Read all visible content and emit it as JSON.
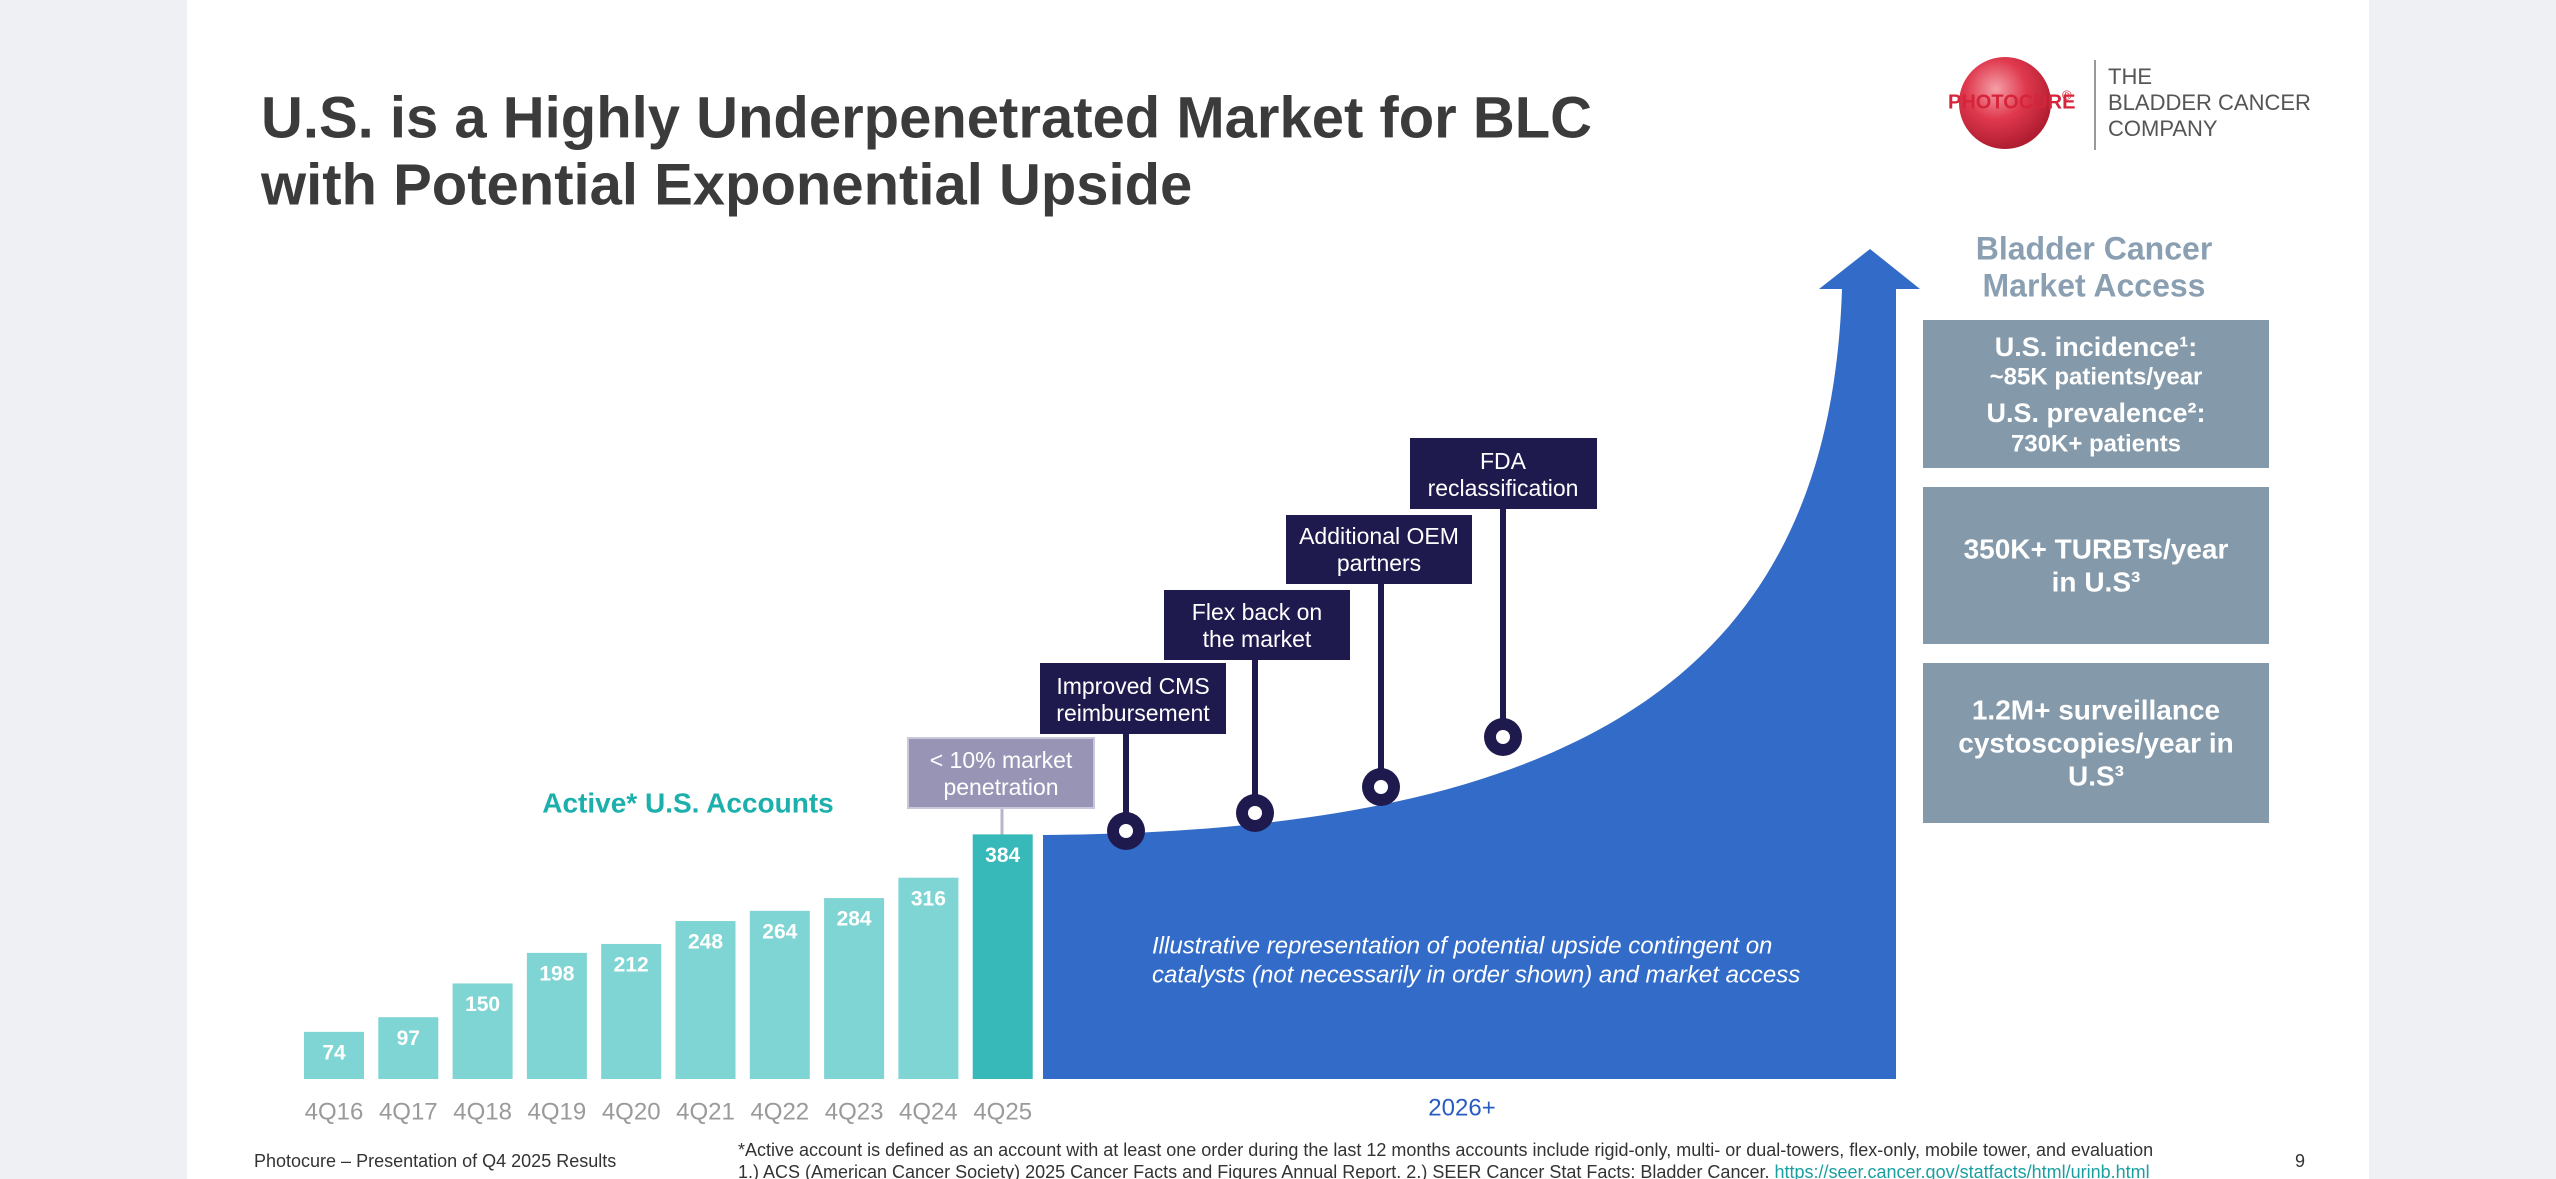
{
  "slide": {
    "title": [
      "U.S. is a Highly Underpenetrated Market for BLC",
      "with Potential Exponential Upside"
    ],
    "logo": {
      "brand": "PHOTOCURE",
      "mark": "®",
      "tagline": [
        "THE",
        "BLADDER CANCER",
        "COMPANY"
      ]
    },
    "penetration_note": [
      "< 10% market",
      "penetration"
    ],
    "milestones": [
      [
        "Improved CMS",
        "reimbursement"
      ],
      [
        "Flex back on",
        "the market"
      ],
      [
        "Additional OEM",
        "partners"
      ],
      [
        "FDA",
        "reclassification"
      ]
    ],
    "upside_note": [
      "Illustrative representation of potential upside contingent on",
      "catalysts (not necessarily in order shown) and market access"
    ],
    "upside_period": "2026+",
    "market_access": {
      "heading": [
        "Bladder Cancer",
        "Market Access"
      ],
      "boxes": [
        [
          "U.S. incidence¹:",
          "~85K patients/year",
          "U.S. prevalence²:",
          "730K+ patients"
        ],
        [
          "350K+ TURBTs/year",
          "in U.S³"
        ],
        [
          "1.2M+ surveillance",
          "cystoscopies/year in",
          "U.S³"
        ]
      ]
    },
    "footer": {
      "source": "Photocure – Presentation of Q4 2025 Results",
      "notes": [
        "*Active account is defined as an account with at least one order during the last 12 months accounts include rigid-only, multi- or dual-towers, flex-only, mobile tower, and evaluation",
        "1.) ACS (American Cancer Society) 2025 Cancer Facts and Figures Annual Report. 2.) SEER Cancer Stat Facts: Bladder Cancer. "
      ],
      "link": "https://seer.cancer.gov/statfacts/html/urinb.html",
      "page": "9"
    }
  },
  "chart_data": {
    "type": "bar",
    "title": "Active* U.S. Accounts",
    "categories": [
      "4Q16",
      "4Q17",
      "4Q18",
      "4Q19",
      "4Q20",
      "4Q21",
      "4Q22",
      "4Q23",
      "4Q24",
      "4Q25"
    ],
    "values": [
      74,
      97,
      150,
      198,
      212,
      248,
      264,
      284,
      316,
      384
    ],
    "colors": [
      "#7fd5d3",
      "#7fd5d3",
      "#7fd5d3",
      "#7fd5d3",
      "#7fd5d3",
      "#7fd5d3",
      "#7fd5d3",
      "#7fd5d3",
      "#7fd5d3",
      "#36b9b8"
    ]
  }
}
